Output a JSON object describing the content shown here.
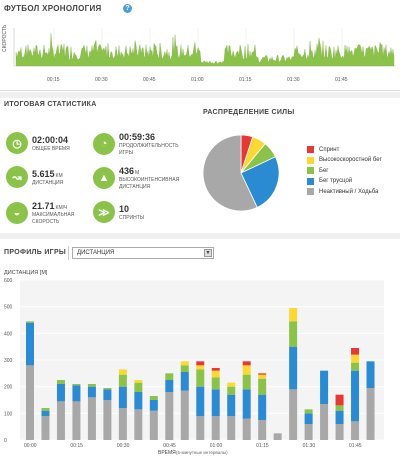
{
  "app": {
    "title": "ФУТБОЛ ХРОНОЛОГИЯ",
    "help_icon": "?"
  },
  "timeline": {
    "axis_label": "СКОРОСТЬ",
    "ticks": [
      "00:15",
      "00:30",
      "00:45",
      "01:00",
      "01:15",
      "01:30",
      "01:45"
    ]
  },
  "summary": {
    "title": "ИТОГОВАЯ СТАТИСТИКА",
    "stats": [
      {
        "icon": "clock-icon",
        "value": "02:00:04",
        "unit": "",
        "label_lines": [
          "ОБЩЕЕ ВРЕМЯ"
        ]
      },
      {
        "icon": "stopwatch-icon",
        "value": "00:59:36",
        "unit": "",
        "label_lines": [
          "ПРОДОЛЖИТЕЛЬНОСТЬ",
          "ИГРЫ"
        ]
      },
      {
        "icon": "distance-icon",
        "value": "5.615",
        "unit": "КМ",
        "label_lines": [
          "ДИСТАНЦИЯ"
        ]
      },
      {
        "icon": "mountain-icon",
        "value": "436",
        "unit": "М",
        "label_lines": [
          "ВЫСОКОИНТЕНСИВНАЯ",
          "ДИСТАНЦИЯ"
        ]
      },
      {
        "icon": "speedometer-icon",
        "value": "21.71",
        "unit": "КМ/Ч",
        "label_lines": [
          "МАКСИМАЛЬНАЯ",
          "СКОРОСТЬ"
        ]
      },
      {
        "icon": "sprint-icon",
        "value": "10",
        "unit": "",
        "label_lines": [
          "СПРИНТЫ"
        ]
      }
    ]
  },
  "distribution": {
    "title": "РАСПРЕДЕЛЕНИЕ СИЛЫ",
    "legend": [
      {
        "label": "Спринт",
        "color": "#e53935"
      },
      {
        "label": "Высокоскоростной бег",
        "color": "#fdd835"
      },
      {
        "label": "Бег",
        "color": "#8bc34a"
      },
      {
        "label": "Бег трусцой",
        "color": "#2a8ad2"
      },
      {
        "label": "Неактивный / Ходьба",
        "color": "#a8a8a8"
      }
    ]
  },
  "profile": {
    "title": "ПРОФИЛЬ ИГРЫ",
    "select_value": "ДИСТАНЦИЯ",
    "select_arrow": "▼"
  },
  "chart_data": {
    "type": "bar",
    "stacked": true,
    "ylabel": "ДИСТАНЦИЯ [M]",
    "xlabel": "ВРЕМЯ",
    "xlabel_note": "(5-минутные интервалы)",
    "ylim": [
      0,
      600
    ],
    "yticks": [
      0,
      100,
      200,
      300,
      400,
      500,
      600
    ],
    "xticks": [
      "00:00",
      "00:15",
      "00:30",
      "00:45",
      "01:00",
      "01:15",
      "01:30",
      "01:45"
    ],
    "grid": true,
    "series": [
      {
        "name": "Неактивный / Ходьба",
        "color": "#a8a8a8",
        "values": [
          280,
          90,
          145,
          145,
          160,
          150,
          120,
          115,
          110,
          180,
          185,
          90,
          90,
          90,
          80,
          75,
          25,
          190,
          60,
          135,
          60,
          70,
          195
        ]
      },
      {
        "name": "Бег трусцой",
        "color": "#2a8ad2",
        "values": [
          160,
          20,
          65,
          60,
          40,
          40,
          80,
          65,
          40,
          45,
          70,
          110,
          100,
          80,
          110,
          95,
          0,
          160,
          40,
          125,
          50,
          190,
          100
        ]
      },
      {
        "name": "Бег",
        "color": "#8bc34a",
        "values": [
          5,
          10,
          15,
          5,
          10,
          5,
          45,
          35,
          15,
          25,
          25,
          65,
          45,
          30,
          55,
          60,
          0,
          95,
          15,
          0,
          20,
          30,
          0
        ]
      },
      {
        "name": "Высокоскоростной бег",
        "color": "#fdd835",
        "values": [
          0,
          0,
          0,
          0,
          0,
          0,
          20,
          10,
          0,
          0,
          15,
          15,
          25,
          15,
          35,
          15,
          0,
          50,
          0,
          0,
          0,
          30,
          0
        ]
      },
      {
        "name": "Спринт",
        "color": "#e53935",
        "values": [
          0,
          0,
          0,
          0,
          0,
          0,
          0,
          0,
          0,
          0,
          0,
          15,
          10,
          0,
          15,
          5,
          0,
          0,
          0,
          0,
          40,
          25,
          0
        ]
      }
    ],
    "pie": {
      "type": "pie",
      "values": [
        5,
        6,
        7,
        25,
        57
      ]
    }
  }
}
